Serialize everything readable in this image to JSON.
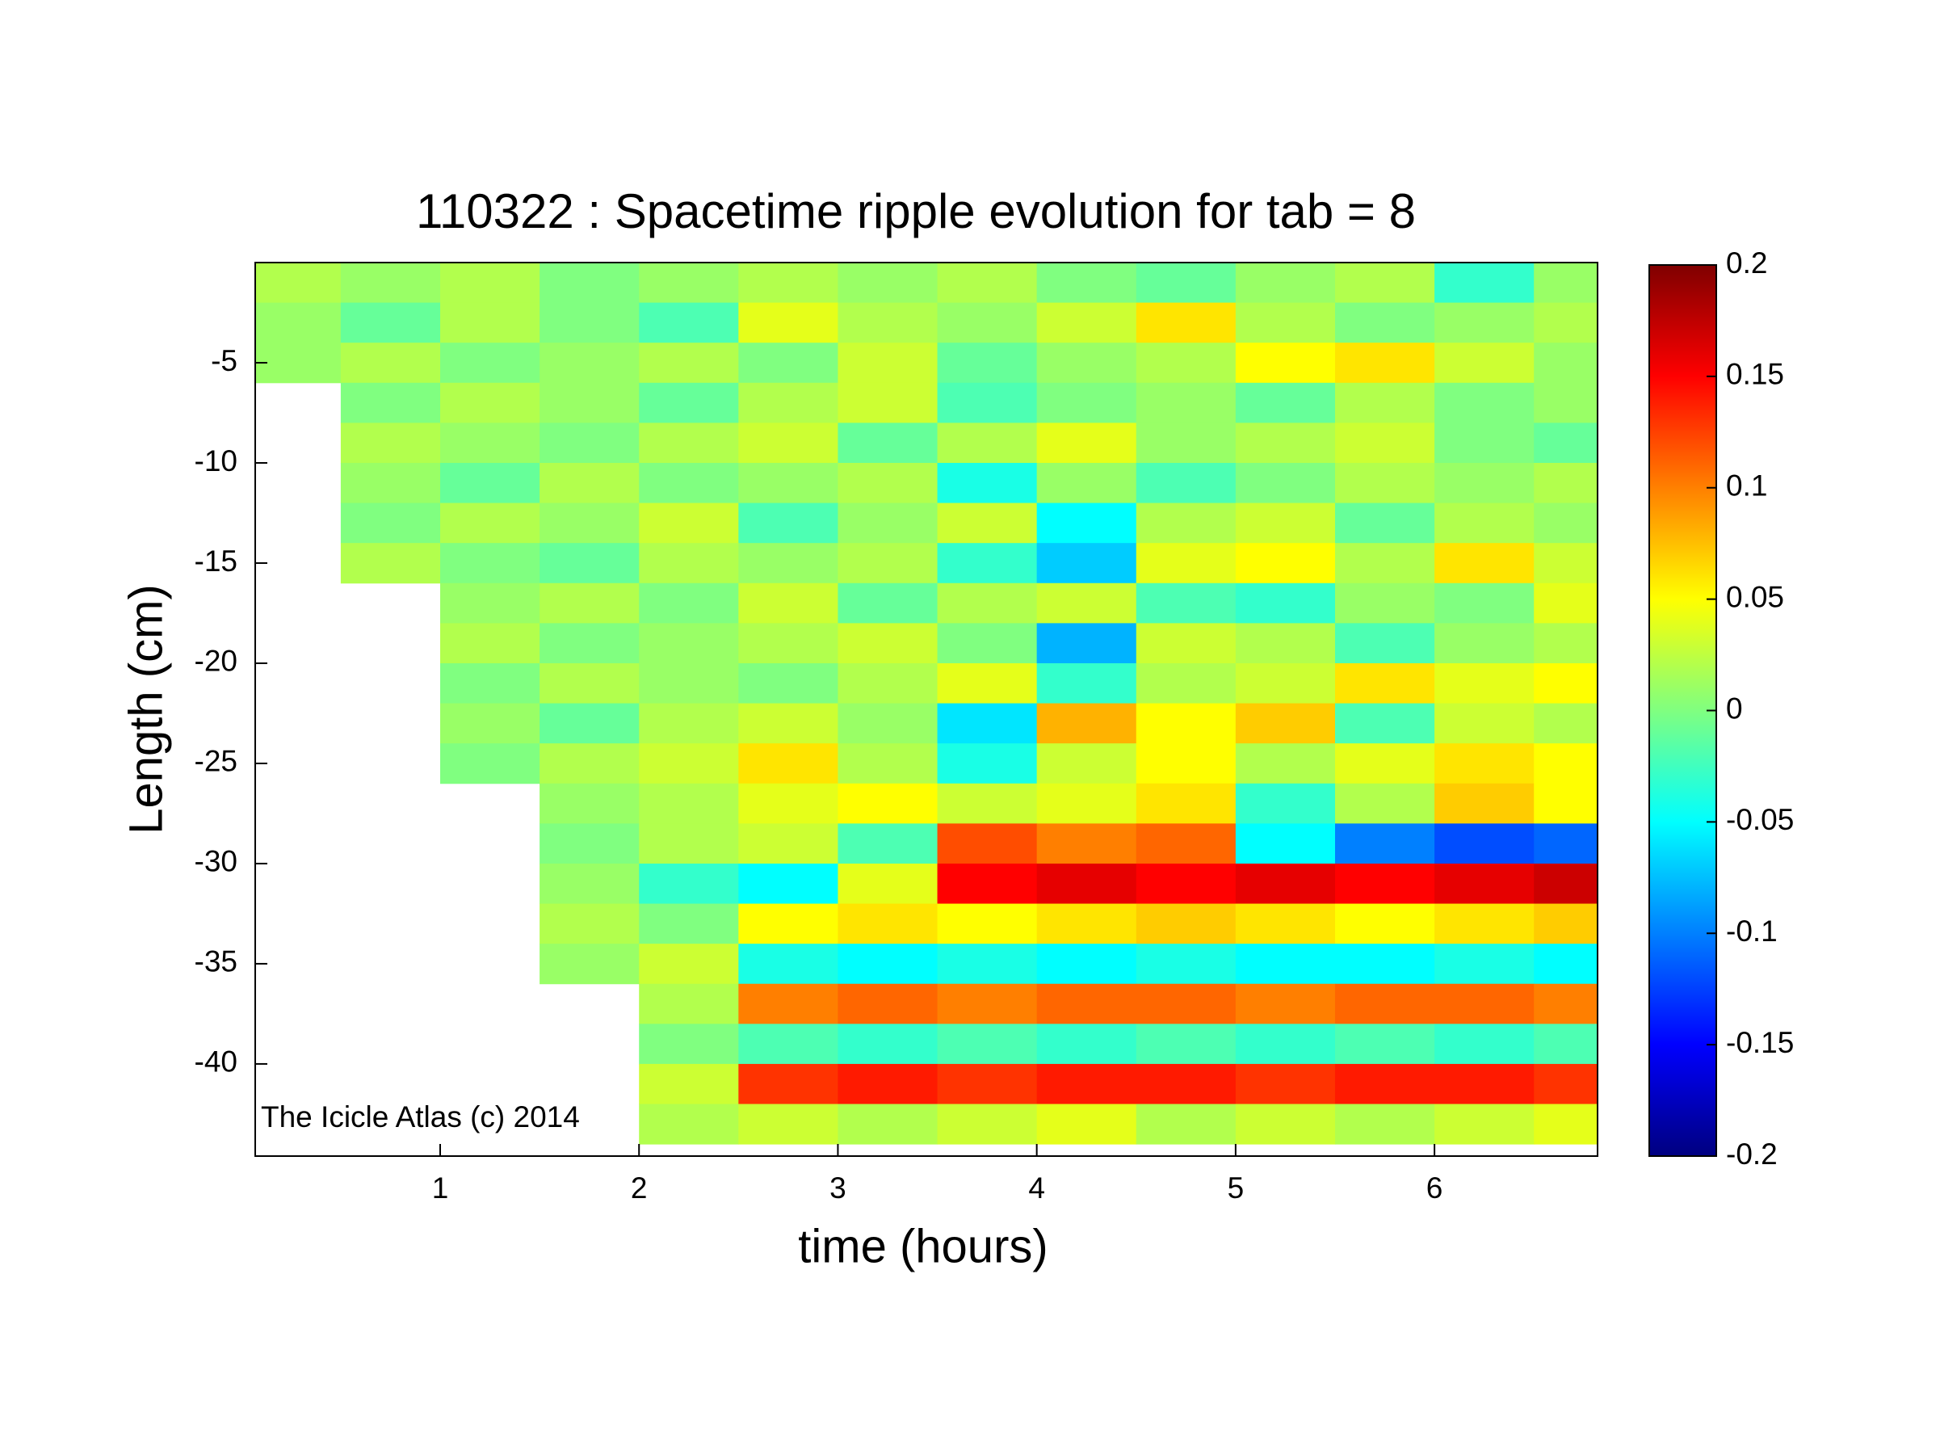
{
  "chart_data": {
    "type": "heatmap",
    "title": "110322 : Spacetime ripple evolution for tab = 8",
    "x_label": "time (hours)",
    "y_label": "Length (cm)",
    "annotation": "The Icicle Atlas (c) 2014",
    "colormap": "jet",
    "clim": [
      -0.2,
      0.2
    ],
    "colorbar_ticks": [
      0.2,
      0.15,
      0.1,
      0.05,
      0,
      -0.05,
      -0.1,
      -0.15,
      -0.2
    ],
    "xlim": [
      0.07,
      6.82
    ],
    "xticks": [
      1,
      2,
      3,
      4,
      5,
      6
    ],
    "ylim": [
      -44.6,
      0
    ],
    "yticks": [
      -5,
      -10,
      -15,
      -20,
      -25,
      -30,
      -35,
      -40
    ],
    "x": [
      0.25,
      0.75,
      1.25,
      1.75,
      2.25,
      2.75,
      3.25,
      3.75,
      4.25,
      4.75,
      5.25,
      5.75,
      6.25,
      6.75
    ],
    "y": [
      -1,
      -3,
      -5,
      -7,
      -9,
      -11,
      -13,
      -15,
      -17,
      -19,
      -21,
      -23,
      -25,
      -27,
      -29,
      -31,
      -33,
      -35,
      -37,
      -39,
      -41,
      -43
    ],
    "values": [
      [
        0.02,
        0.01,
        0.02,
        0.0,
        0.01,
        0.02,
        0.01,
        0.02,
        0.0,
        -0.01,
        0.01,
        0.02,
        -0.03,
        0.01
      ],
      [
        0.01,
        -0.01,
        0.02,
        0.0,
        -0.02,
        0.04,
        0.02,
        0.01,
        0.03,
        0.06,
        0.02,
        0.0,
        0.01,
        0.02
      ],
      [
        0.01,
        0.02,
        0.0,
        0.01,
        0.02,
        0.0,
        0.03,
        -0.01,
        0.01,
        0.02,
        0.05,
        0.06,
        0.03,
        0.01
      ],
      [
        null,
        0.0,
        0.02,
        0.01,
        -0.01,
        0.02,
        0.03,
        -0.02,
        0.0,
        0.01,
        -0.01,
        0.02,
        0.0,
        0.01
      ],
      [
        null,
        0.02,
        0.01,
        0.0,
        0.02,
        0.03,
        -0.01,
        0.02,
        0.04,
        0.01,
        0.02,
        0.03,
        0.0,
        -0.01
      ],
      [
        null,
        0.01,
        -0.01,
        0.02,
        0.0,
        0.01,
        0.02,
        -0.04,
        0.01,
        -0.02,
        0.0,
        0.02,
        0.01,
        0.02
      ],
      [
        null,
        0.0,
        0.02,
        0.01,
        0.03,
        -0.02,
        0.01,
        0.03,
        -0.05,
        0.02,
        0.03,
        -0.01,
        0.02,
        0.01
      ],
      [
        null,
        0.02,
        0.0,
        -0.01,
        0.02,
        0.01,
        0.02,
        -0.03,
        -0.07,
        0.04,
        0.05,
        0.02,
        0.06,
        0.03
      ],
      [
        null,
        null,
        0.01,
        0.02,
        0.0,
        0.03,
        -0.01,
        0.02,
        0.03,
        -0.02,
        -0.03,
        0.01,
        0.0,
        0.04
      ],
      [
        null,
        null,
        0.02,
        0.0,
        0.01,
        0.02,
        0.03,
        0.0,
        -0.08,
        0.03,
        0.02,
        -0.02,
        0.01,
        0.02
      ],
      [
        null,
        null,
        0.0,
        0.02,
        0.01,
        0.0,
        0.02,
        0.04,
        -0.03,
        0.02,
        0.03,
        0.06,
        0.04,
        0.05
      ],
      [
        null,
        null,
        0.01,
        -0.01,
        0.02,
        0.03,
        0.01,
        -0.06,
        0.08,
        0.05,
        0.07,
        -0.02,
        0.03,
        0.02
      ],
      [
        null,
        null,
        0.0,
        0.02,
        0.03,
        0.06,
        0.02,
        -0.04,
        0.03,
        0.05,
        0.02,
        0.04,
        0.06,
        0.05
      ],
      [
        null,
        null,
        null,
        0.01,
        0.02,
        0.04,
        0.05,
        0.03,
        0.04,
        0.06,
        -0.03,
        0.02,
        0.07,
        0.05
      ],
      [
        null,
        null,
        null,
        0.0,
        0.02,
        0.03,
        -0.02,
        0.12,
        0.1,
        0.11,
        -0.05,
        -0.1,
        -0.12,
        -0.11
      ],
      [
        null,
        null,
        null,
        0.01,
        -0.03,
        -0.05,
        0.04,
        0.15,
        0.16,
        0.15,
        0.16,
        0.15,
        0.16,
        0.17
      ],
      [
        null,
        null,
        null,
        0.02,
        0.0,
        0.05,
        0.06,
        0.05,
        0.06,
        0.07,
        0.06,
        0.05,
        0.06,
        0.07
      ],
      [
        null,
        null,
        null,
        0.01,
        0.03,
        -0.04,
        -0.05,
        -0.04,
        -0.05,
        -0.04,
        -0.05,
        -0.05,
        -0.04,
        -0.05
      ],
      [
        null,
        null,
        null,
        null,
        0.02,
        0.1,
        0.11,
        0.1,
        0.11,
        0.11,
        0.1,
        0.11,
        0.11,
        0.1
      ],
      [
        null,
        null,
        null,
        null,
        0.0,
        -0.02,
        -0.03,
        -0.02,
        -0.03,
        -0.02,
        -0.03,
        -0.02,
        -0.03,
        -0.02
      ],
      [
        null,
        null,
        null,
        null,
        0.03,
        0.13,
        0.14,
        0.13,
        0.14,
        0.14,
        0.13,
        0.14,
        0.14,
        0.13
      ],
      [
        null,
        null,
        null,
        null,
        0.02,
        0.03,
        0.02,
        0.03,
        0.04,
        0.02,
        0.03,
        0.02,
        0.03,
        0.04
      ]
    ]
  }
}
